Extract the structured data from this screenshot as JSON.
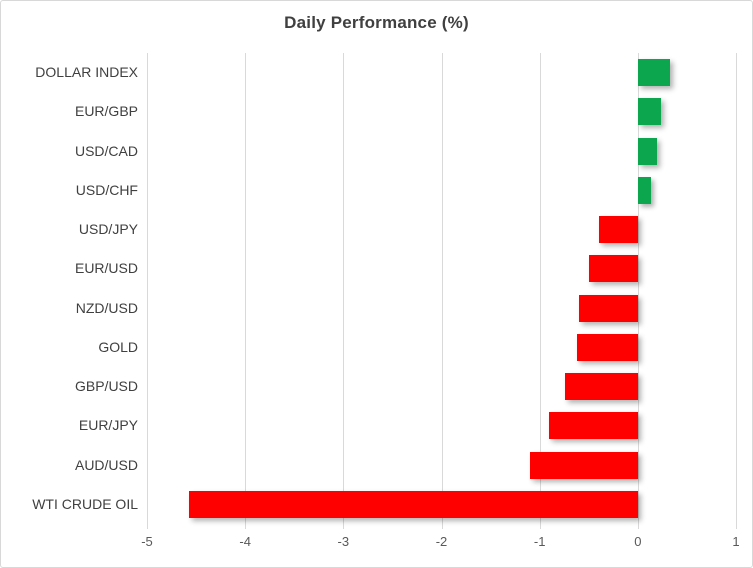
{
  "chart_data": {
    "type": "bar",
    "orientation": "horizontal",
    "title": "Daily Performance (%)",
    "categories": [
      "DOLLAR INDEX",
      "EUR/GBP",
      "USD/CAD",
      "USD/CHF",
      "USD/JPY",
      "EUR/USD",
      "NZD/USD",
      "GOLD",
      "GBP/USD",
      "EUR/JPY",
      "AUD/USD",
      "WTI CRUDE OIL"
    ],
    "values": [
      0.33,
      0.24,
      0.2,
      0.13,
      -0.4,
      -0.5,
      -0.6,
      -0.62,
      -0.74,
      -0.9,
      -1.1,
      -4.57
    ],
    "xlabel": "",
    "ylabel": "",
    "xlim": [
      -5,
      1
    ],
    "xticks": [
      -5,
      -4,
      -3,
      -2,
      -1,
      0,
      1
    ],
    "grid": "vertical-gridlines",
    "legend": "none",
    "colors": {
      "positive": "#0CA64F",
      "negative": "#FF0000",
      "gridline": "#d9d9d9",
      "title_text": "#404040",
      "category_text": "#404040",
      "tick_text": "#595959"
    }
  }
}
